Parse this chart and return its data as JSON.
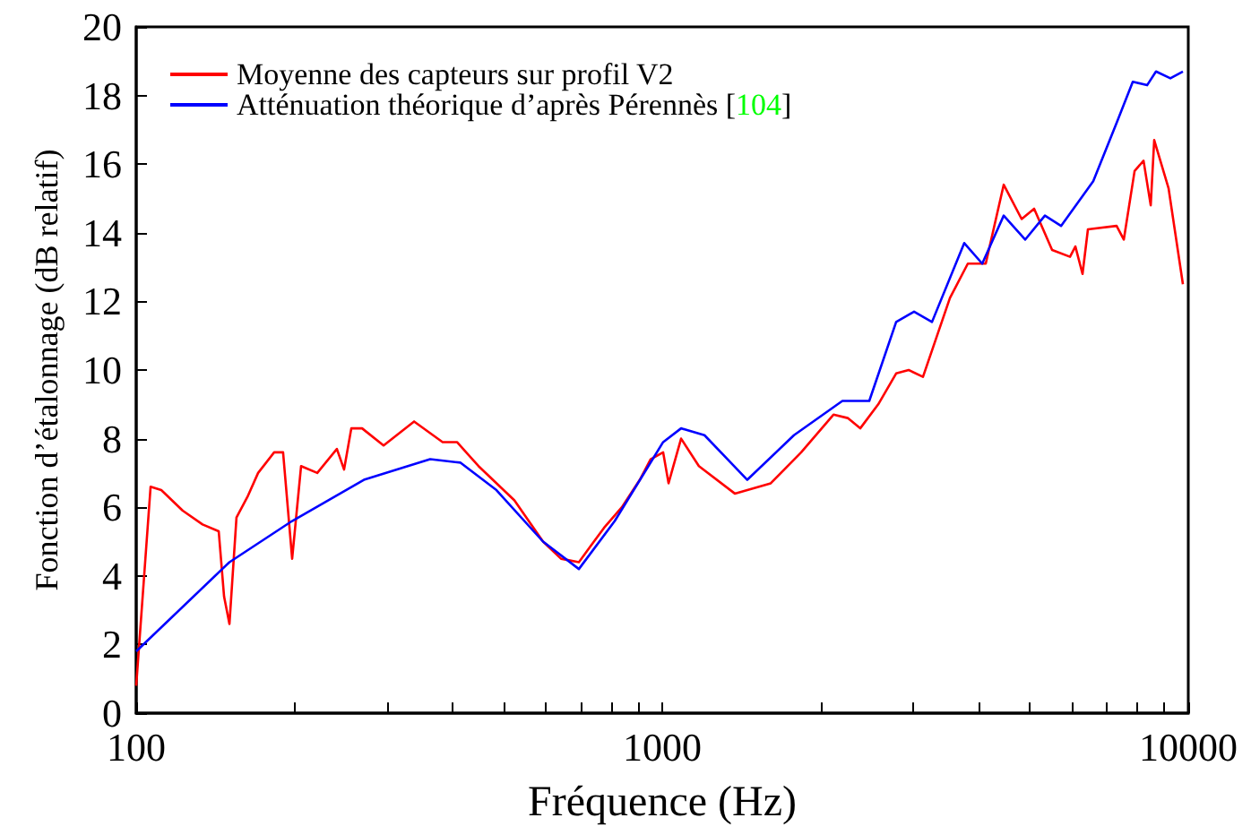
{
  "chart_data": {
    "type": "line",
    "xlabel": "Fréquence (Hz)",
    "ylabel": "Fonction d’étalonnage (dB relatif)",
    "log": "x",
    "xlim": [
      100,
      10000
    ],
    "ylim": [
      0,
      20
    ],
    "xticks": [
      100,
      {
        "value": 200,
        "label": null
      },
      {
        "value": 300,
        "label": null
      },
      {
        "value": 400,
        "label": null
      },
      {
        "value": 500,
        "label": null
      },
      {
        "value": 600,
        "label": null
      },
      {
        "value": 700,
        "label": null
      },
      {
        "value": 800,
        "label": null
      },
      {
        "value": 900,
        "label": null
      },
      1000,
      {
        "value": 2000,
        "label": null
      },
      {
        "value": 3000,
        "label": null
      },
      {
        "value": 4000,
        "label": null
      },
      {
        "value": 5000,
        "label": null
      },
      {
        "value": 6000,
        "label": null
      },
      {
        "value": 7000,
        "label": null
      },
      {
        "value": 8000,
        "label": null
      },
      {
        "value": 9000,
        "label": null
      },
      10000
    ],
    "yticks": [
      0,
      2,
      4,
      6,
      8,
      10,
      12,
      14,
      16,
      18,
      20
    ],
    "grid": false,
    "legend": "top left",
    "marker": "none",
    "line_style": "solid",
    "series": [
      {
        "name": "Moyenne des capteurs sur profil V2",
        "color": "#ff0000",
        "x": [
          100,
          106.5,
          111.6,
          122.6,
          133.7,
          143.5,
          146.9,
          150.4,
          155.1,
          162.7,
          170.5,
          182.9,
          190.2,
          197.9,
          205.8,
          220.9,
          240.7,
          248.4,
          256.4,
          268.8,
          295.3,
          337.5,
          382.4,
          407.2,
          447.4,
          523.6,
          593.5,
          642.1,
          694.3,
          733.5,
          775,
          838,
          906.5,
          950.4,
          1004,
          1028,
          1086,
          1174,
          1374,
          1608,
          1837,
          2116,
          2252,
          2379,
          2574,
          2784,
          2941,
          3131,
          3523,
          3810,
          4121,
          4458,
          4822,
          5093,
          5510,
          5959,
          6101,
          6295,
          6445,
          7307,
          7541,
          7906,
          8222,
          8484,
          8615,
          9173,
          9768
        ],
        "values": [
          0.8,
          6.6,
          6.5,
          5.9,
          5.5,
          5.3,
          3.4,
          2.6,
          5.7,
          6.3,
          7.0,
          7.6,
          7.6,
          4.5,
          7.2,
          7.0,
          7.7,
          7.1,
          8.3,
          8.3,
          7.8,
          8.5,
          7.9,
          7.9,
          7.2,
          6.2,
          5.0,
          4.5,
          4.4,
          4.9,
          5.4,
          6.0,
          6.8,
          7.4,
          7.6,
          6.7,
          8.0,
          7.2,
          6.4,
          6.7,
          7.6,
          8.7,
          8.6,
          8.3,
          9.0,
          9.9,
          10.0,
          9.8,
          12.1,
          13.1,
          13.1,
          15.4,
          14.4,
          14.7,
          13.5,
          13.3,
          13.6,
          12.8,
          14.1,
          14.2,
          13.8,
          15.8,
          16.1,
          14.8,
          16.7,
          15.3,
          12.5
        ]
      },
      {
        "name": "Atténuation théorique d’après Pérennès [104]",
        "color": "#0000ff",
        "x": [
          100,
          150.4,
          197.9,
          270.9,
          362.1,
          413.6,
          484,
          593.5,
          694.3,
          812.3,
          1004,
          1086,
          1203,
          1451,
          1780,
          2200,
          2475,
          2784,
          3011,
          3257,
          3751,
          4058,
          4458,
          4897,
          5339,
          5730,
          6597,
          7307,
          7844,
          8352,
          8683,
          9246,
          9768
        ],
        "values": [
          1.8,
          4.4,
          5.6,
          6.8,
          7.4,
          7.3,
          6.5,
          5.0,
          4.2,
          5.6,
          7.9,
          8.3,
          8.1,
          6.8,
          8.1,
          9.1,
          9.1,
          11.4,
          11.7,
          11.4,
          13.7,
          13.1,
          14.5,
          13.8,
          14.5,
          14.2,
          15.5,
          17.2,
          18.4,
          18.3,
          18.7,
          18.5,
          18.7
        ]
      }
    ]
  }
}
